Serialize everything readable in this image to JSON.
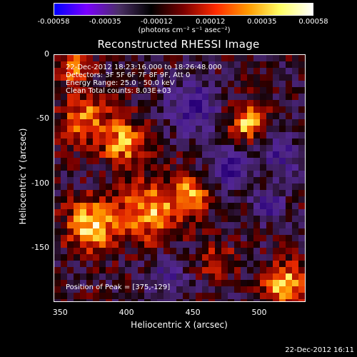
{
  "colorbar": {
    "tick_labels": [
      "-0.00058",
      "-0.00035",
      "-0.00012",
      "0.00012",
      "0.00035",
      "0.00058"
    ],
    "tick_values": [
      -0.00058,
      -0.00035,
      -0.00012,
      0.00012,
      0.00035,
      0.00058
    ],
    "units": "(photons cm⁻² s⁻¹ asec⁻²)",
    "stops": [
      "#0000ff",
      "#7a00ff",
      "#4b2f66",
      "#000000",
      "#7a0000",
      "#ff2a00",
      "#ff9a00",
      "#ffff66",
      "#ffffff"
    ]
  },
  "title": "Reconstructed RHESSI Image",
  "annotations": {
    "time_range": "22-Dec-2012 18:23:16.000 to 18:26:48.000",
    "detectors": "Detectors: 3F 5F 6F 7F 8F 9F, Att 0",
    "energy": "Energy Range: 25.0 - 50.0 keV",
    "method_counts": "Clean    Total counts: 8.03E+03",
    "peak": "Position of Peak = [375,-129]"
  },
  "axes": {
    "x_title": "Heliocentric X (arcsec)",
    "y_title": "Heliocentric Y (arcsec)",
    "x_ticks": [
      "350",
      "400",
      "450",
      "500"
    ],
    "x_tick_values": [
      350,
      400,
      450,
      500
    ],
    "y_ticks": [
      "0",
      "-50",
      "-100",
      "-150"
    ],
    "y_tick_values": [
      0,
      -50,
      -100,
      -150
    ],
    "xlim": [
      345,
      535
    ],
    "ylim": [
      -192,
      0
    ]
  },
  "footer": "22-Dec-2012 16:11"
}
